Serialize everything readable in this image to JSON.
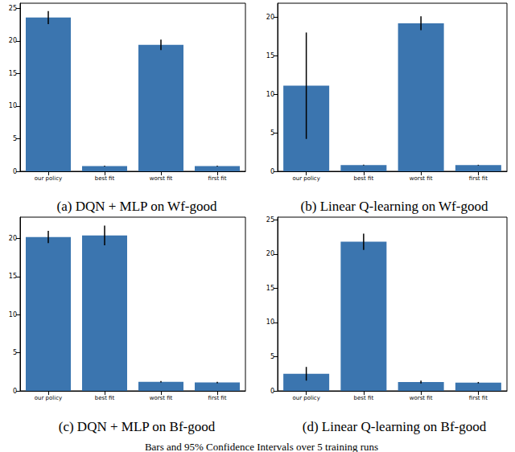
{
  "chart_data": [
    {
      "type": "bar",
      "title": "(a) DQN + MLP on Wf-good",
      "categories": [
        "our policy",
        "best fit",
        "worst fit",
        "first fit"
      ],
      "values": [
        23.6,
        0.8,
        19.4,
        0.8
      ],
      "errors": [
        1.0,
        0.05,
        0.8,
        0.05
      ],
      "color": "#3b75af",
      "ylim": [
        0,
        25.8
      ],
      "yticks": [
        0,
        5,
        10,
        15,
        20,
        25
      ]
    },
    {
      "type": "bar",
      "title": "(b) Linear Q-learning on Wf-good",
      "categories": [
        "our policy",
        "best fit",
        "worst fit",
        "first fit"
      ],
      "values": [
        11.1,
        0.8,
        19.2,
        0.8
      ],
      "errors": [
        6.9,
        0.05,
        0.9,
        0.05
      ],
      "color": "#3b75af",
      "ylim": [
        0,
        21.8
      ],
      "yticks": [
        0,
        5,
        10,
        15,
        20
      ]
    },
    {
      "type": "bar",
      "title": "(c) DQN + MLP on Bf-good",
      "categories": [
        "our policy",
        "best fit",
        "worst fit",
        "first fit"
      ],
      "values": [
        20.2,
        20.4,
        1.2,
        1.1
      ],
      "errors": [
        0.8,
        1.3,
        0.1,
        0.1
      ],
      "color": "#3b75af",
      "ylim": [
        0,
        22.8
      ],
      "yticks": [
        0,
        5,
        10,
        15,
        20
      ]
    },
    {
      "type": "bar",
      "title": "(d) Linear Q-learning on Bf-good",
      "categories": [
        "our policy",
        "best fit",
        "worst fit",
        "first fit"
      ],
      "values": [
        2.5,
        21.8,
        1.3,
        1.2
      ],
      "errors": [
        1.0,
        1.2,
        0.2,
        0.1
      ],
      "color": "#3b75af",
      "ylim": [
        0,
        25.4
      ],
      "yticks": [
        0,
        5,
        10,
        15,
        20,
        25
      ]
    }
  ],
  "caption": "Bars and 95% Confidence Intervals over 5 training runs"
}
